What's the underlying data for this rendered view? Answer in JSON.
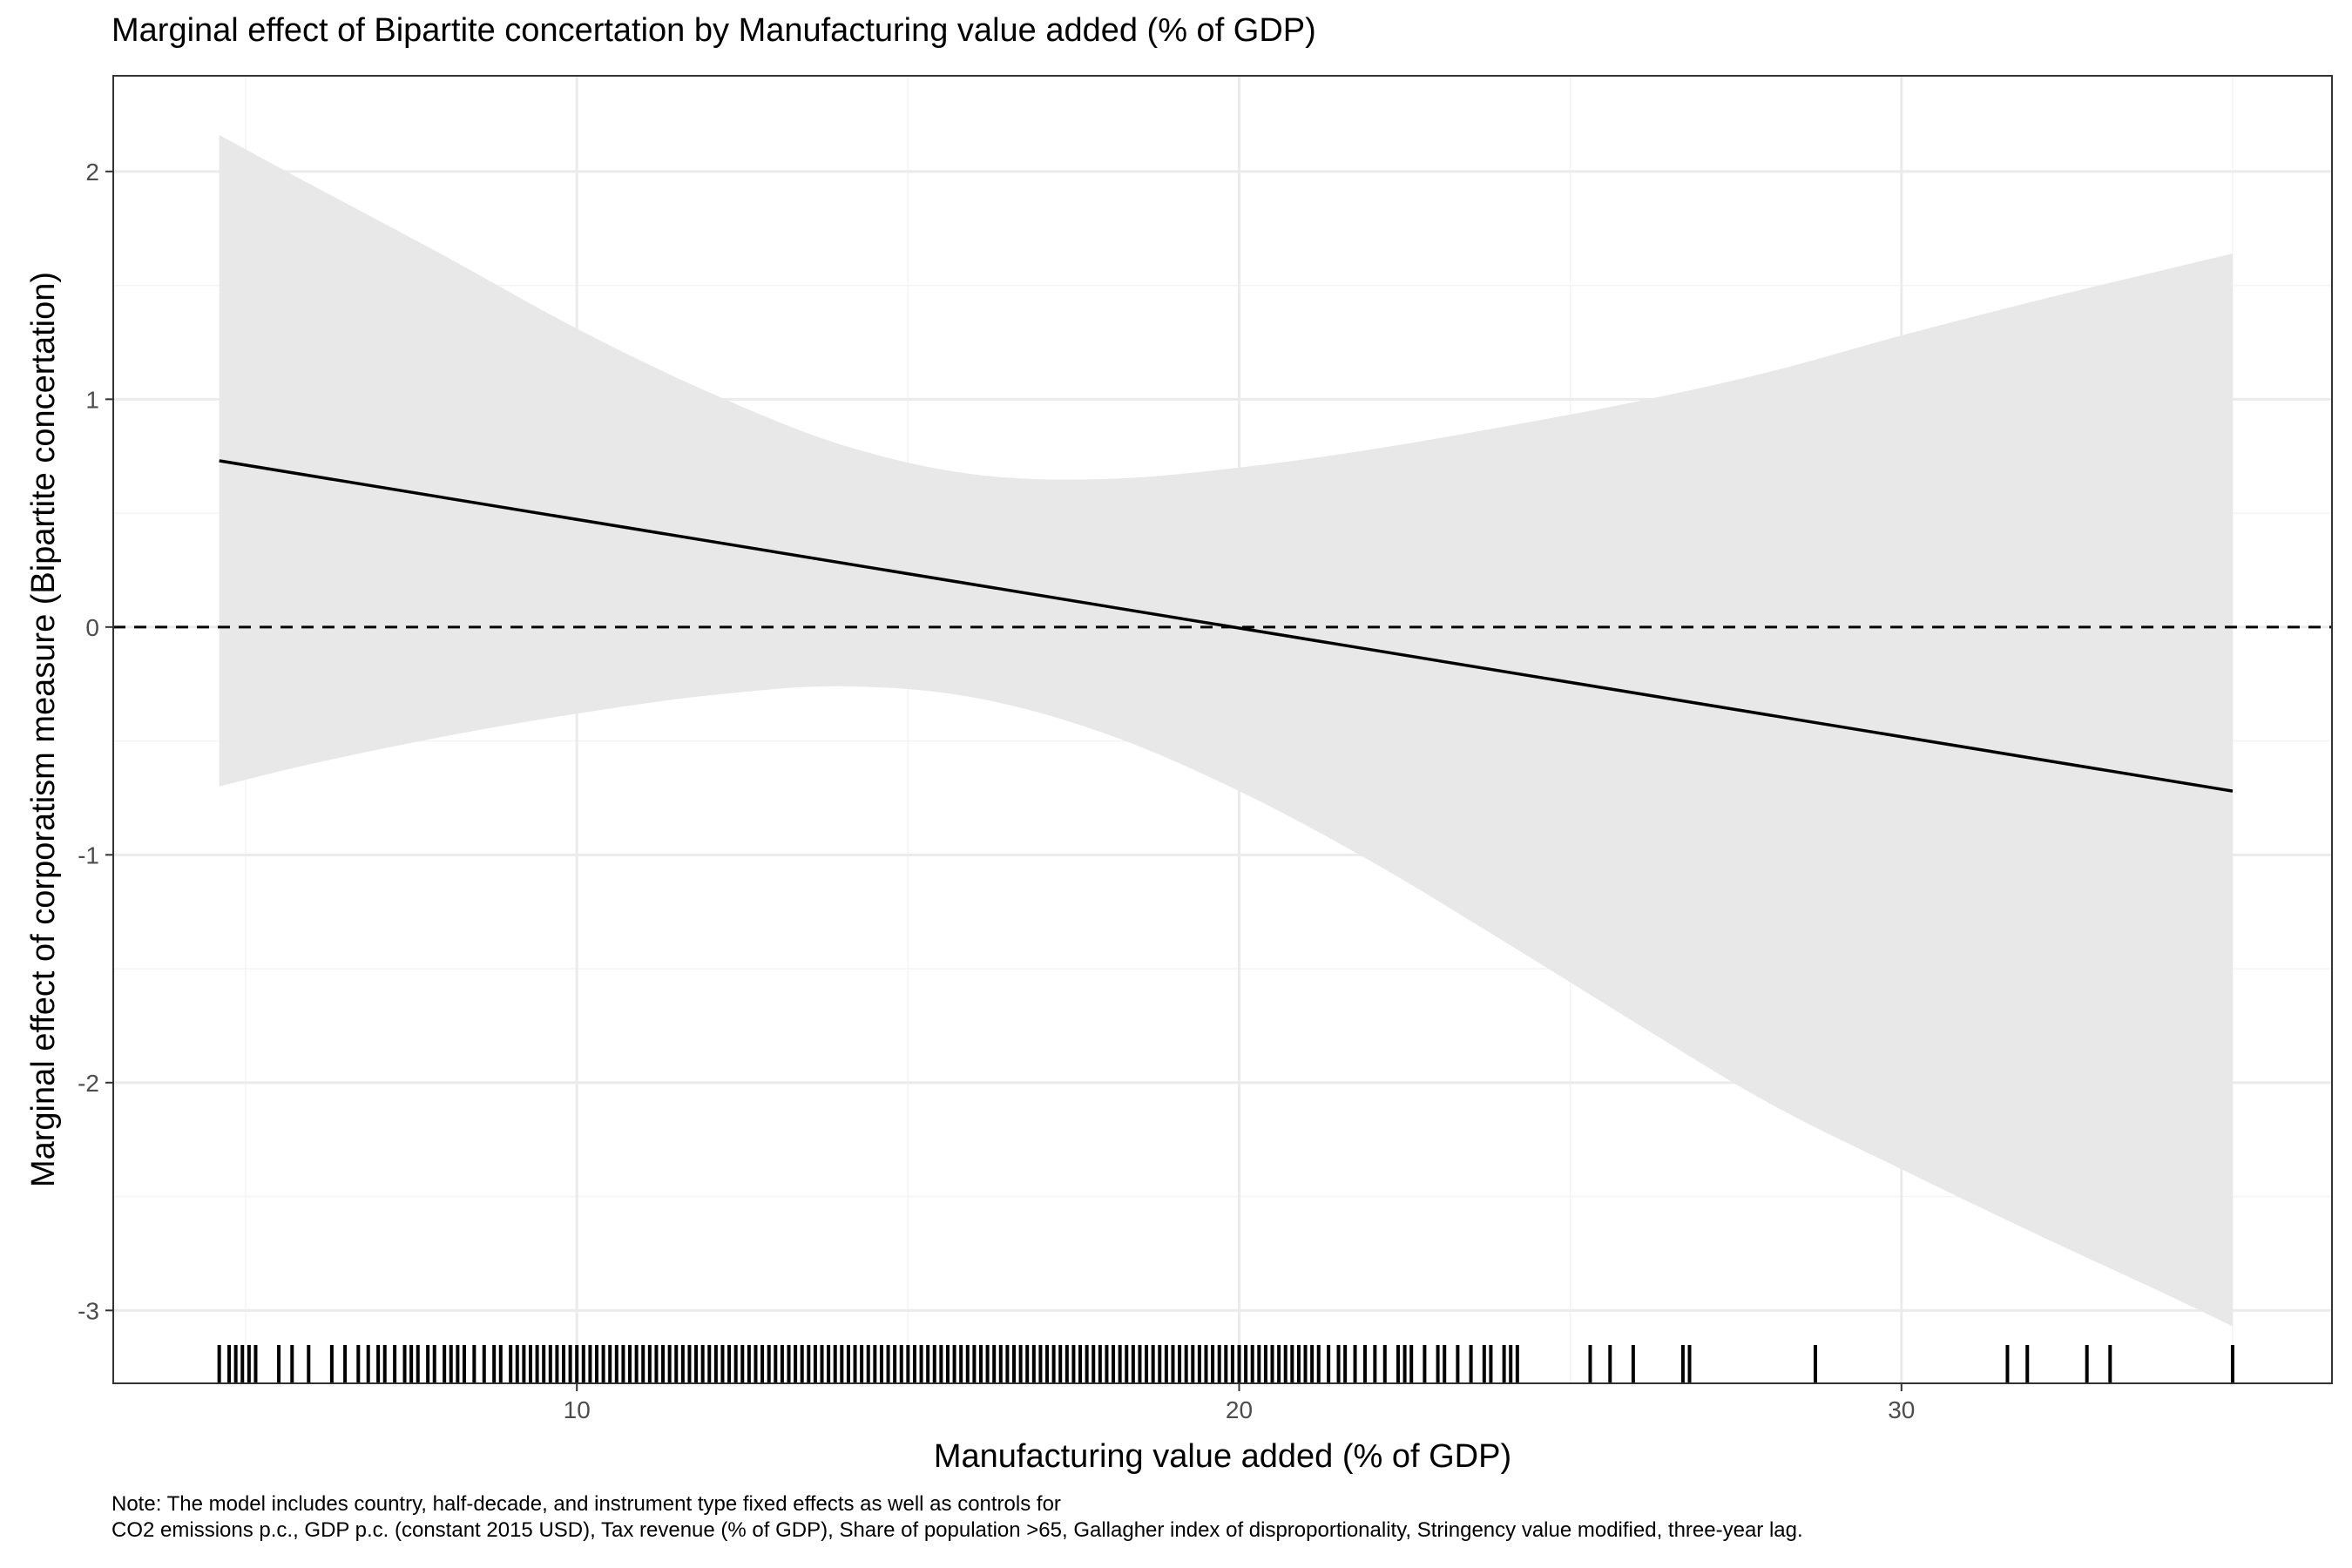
{
  "chart_data": {
    "type": "line",
    "title": "Marginal effect of Bipartite concertation by Manufacturing value added (% of GDP)",
    "xlabel": "Manufacturing value added (% of GDP)",
    "ylabel": "Marginal effect of corporatism measure (Bipartite concertation)",
    "xlim": [
      3.0,
      36.5
    ],
    "ylim": [
      -3.32,
      2.42
    ],
    "x_ticks": [
      10,
      20,
      30
    ],
    "x_tick_labels": [
      "10",
      "20",
      "30"
    ],
    "y_ticks": [
      2,
      1,
      0,
      -1,
      -2,
      -3
    ],
    "y_tick_labels": [
      "2",
      "1",
      "0",
      "-1",
      "-2",
      "-3"
    ],
    "grid": true,
    "reference_line": {
      "y": 0,
      "style": "dashed"
    },
    "series": [
      {
        "type": "line",
        "x": [
          4.6,
          35.0
        ],
        "y": [
          0.73,
          -0.72
        ]
      },
      {
        "type": "confidence_band",
        "x": [
          4.6,
          6,
          8,
          10,
          12,
          14,
          16,
          18,
          20,
          22,
          24,
          26,
          28,
          30,
          32,
          34,
          35.0
        ],
        "upper": [
          2.16,
          1.94,
          1.63,
          1.31,
          1.03,
          0.8,
          0.67,
          0.65,
          0.7,
          0.78,
          0.88,
          0.99,
          1.12,
          1.28,
          1.43,
          1.57,
          1.64
        ],
        "lower": [
          -0.7,
          -0.6,
          -0.48,
          -0.38,
          -0.3,
          -0.26,
          -0.31,
          -0.47,
          -0.72,
          -1.03,
          -1.38,
          -1.74,
          -2.09,
          -2.38,
          -2.66,
          -2.93,
          -3.07
        ]
      }
    ],
    "rug": [
      4.6,
      4.75,
      4.85,
      4.95,
      5.05,
      5.15,
      5.5,
      5.7,
      5.95,
      6.3,
      6.5,
      6.7,
      6.85,
      7.0,
      7.1,
      7.25,
      7.4,
      7.5,
      7.6,
      7.75,
      7.85,
      8.0,
      8.1,
      8.2,
      8.3,
      8.45,
      8.6,
      8.75,
      8.85,
      9.0,
      9.1,
      9.2,
      9.3,
      9.4,
      9.5,
      9.6,
      9.7,
      9.8,
      9.9,
      10.0,
      10.1,
      10.2,
      10.3,
      10.4,
      10.5,
      10.6,
      10.7,
      10.8,
      10.9,
      11.0,
      11.1,
      11.2,
      11.3,
      11.4,
      11.5,
      11.6,
      11.7,
      11.8,
      11.9,
      12.0,
      12.1,
      12.2,
      12.3,
      12.4,
      12.5,
      12.6,
      12.7,
      12.8,
      12.9,
      13.0,
      13.1,
      13.2,
      13.3,
      13.4,
      13.5,
      13.6,
      13.7,
      13.8,
      13.9,
      14.0,
      14.1,
      14.2,
      14.3,
      14.4,
      14.5,
      14.6,
      14.7,
      14.8,
      14.9,
      15.0,
      15.1,
      15.2,
      15.3,
      15.4,
      15.5,
      15.6,
      15.7,
      15.8,
      15.9,
      16.0,
      16.1,
      16.2,
      16.3,
      16.4,
      16.5,
      16.6,
      16.7,
      16.8,
      16.9,
      17.0,
      17.1,
      17.2,
      17.3,
      17.4,
      17.5,
      17.6,
      17.7,
      17.8,
      17.9,
      18.0,
      18.1,
      18.2,
      18.3,
      18.4,
      18.5,
      18.6,
      18.7,
      18.8,
      18.9,
      19.0,
      19.1,
      19.2,
      19.3,
      19.4,
      19.5,
      19.6,
      19.7,
      19.8,
      19.9,
      20.0,
      20.1,
      20.2,
      20.3,
      20.4,
      20.5,
      20.6,
      20.7,
      20.8,
      20.9,
      21.0,
      21.1,
      21.2,
      21.35,
      21.5,
      21.6,
      21.75,
      21.9,
      22.05,
      22.2,
      22.4,
      22.5,
      22.6,
      22.8,
      23.0,
      23.1,
      23.3,
      23.5,
      23.7,
      23.8,
      24.0,
      24.1,
      24.2,
      25.3,
      25.6,
      25.95,
      26.7,
      26.8,
      28.7,
      31.6,
      31.9,
      32.8,
      33.15,
      35.0
    ]
  },
  "note": {
    "line1": "Note: The model includes country, half-decade, and instrument type fixed effects as well as controls for",
    "line2": "CO2 emissions p.c., GDP p.c. (constant 2015 USD), Tax revenue (% of GDP), Share of population >65, Gallagher index of disproportionality, Stringency value modified, three-year lag."
  },
  "colors": {
    "band": "#e8e8e8",
    "grid_major": "#ebebeb",
    "grid_minor": "#f4f4f4",
    "line": "#000000",
    "panel_border": "#333333"
  }
}
